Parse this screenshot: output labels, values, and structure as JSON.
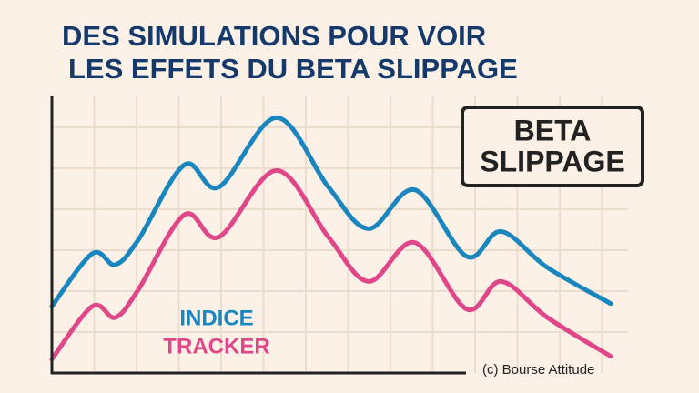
{
  "chart_data": {
    "type": "line",
    "title": [
      "DES SIMULATIONS POUR VOIR",
      "LES EFFETS DU BETA SLIPPAGE"
    ],
    "annotation": [
      "BETA",
      "SLIPPAGE"
    ],
    "credit": "(c) Bourse Attitude",
    "x": [
      0,
      7,
      11,
      15,
      23,
      29,
      39,
      48,
      55,
      63,
      72,
      78,
      86,
      97
    ],
    "xlim": [
      0,
      100
    ],
    "ylim": [
      0,
      100
    ],
    "grid": true,
    "series": [
      {
        "name": "INDICE",
        "color": "#1a86c0",
        "values": [
          24,
          43,
          39,
          48,
          75,
          67,
          92,
          67,
          52,
          66,
          42,
          51,
          38,
          25
        ]
      },
      {
        "name": "TRACKER",
        "color": "#e0478a",
        "values": [
          5,
          24,
          20,
          30,
          57,
          49,
          73,
          49,
          33,
          47,
          23,
          33,
          20,
          6
        ]
      }
    ]
  }
}
